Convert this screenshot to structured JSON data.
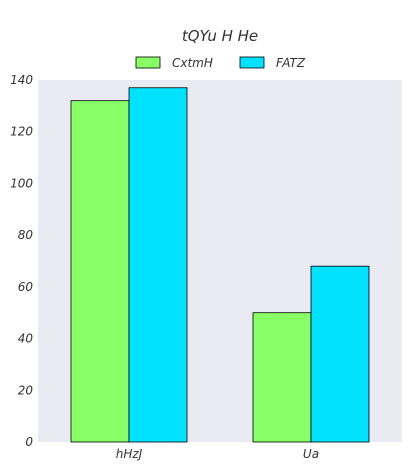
{
  "chart_data": {
    "type": "bar",
    "title": "tQYu H He",
    "xlabel": "",
    "ylabel": "",
    "categories": [
      "hHzJ",
      "Ua"
    ],
    "series": [
      {
        "name": "CxtmH",
        "color": "#88ff66",
        "values": [
          132,
          50
        ]
      },
      {
        "name": "FATZ",
        "color": "#00e2ff",
        "values": [
          137,
          68
        ]
      }
    ],
    "ylim": [
      0,
      140
    ],
    "yticks": [
      0,
      20,
      40,
      60,
      80,
      100,
      120,
      140
    ],
    "grid": false,
    "background": "#eaeaf2",
    "legend": "top-center"
  }
}
